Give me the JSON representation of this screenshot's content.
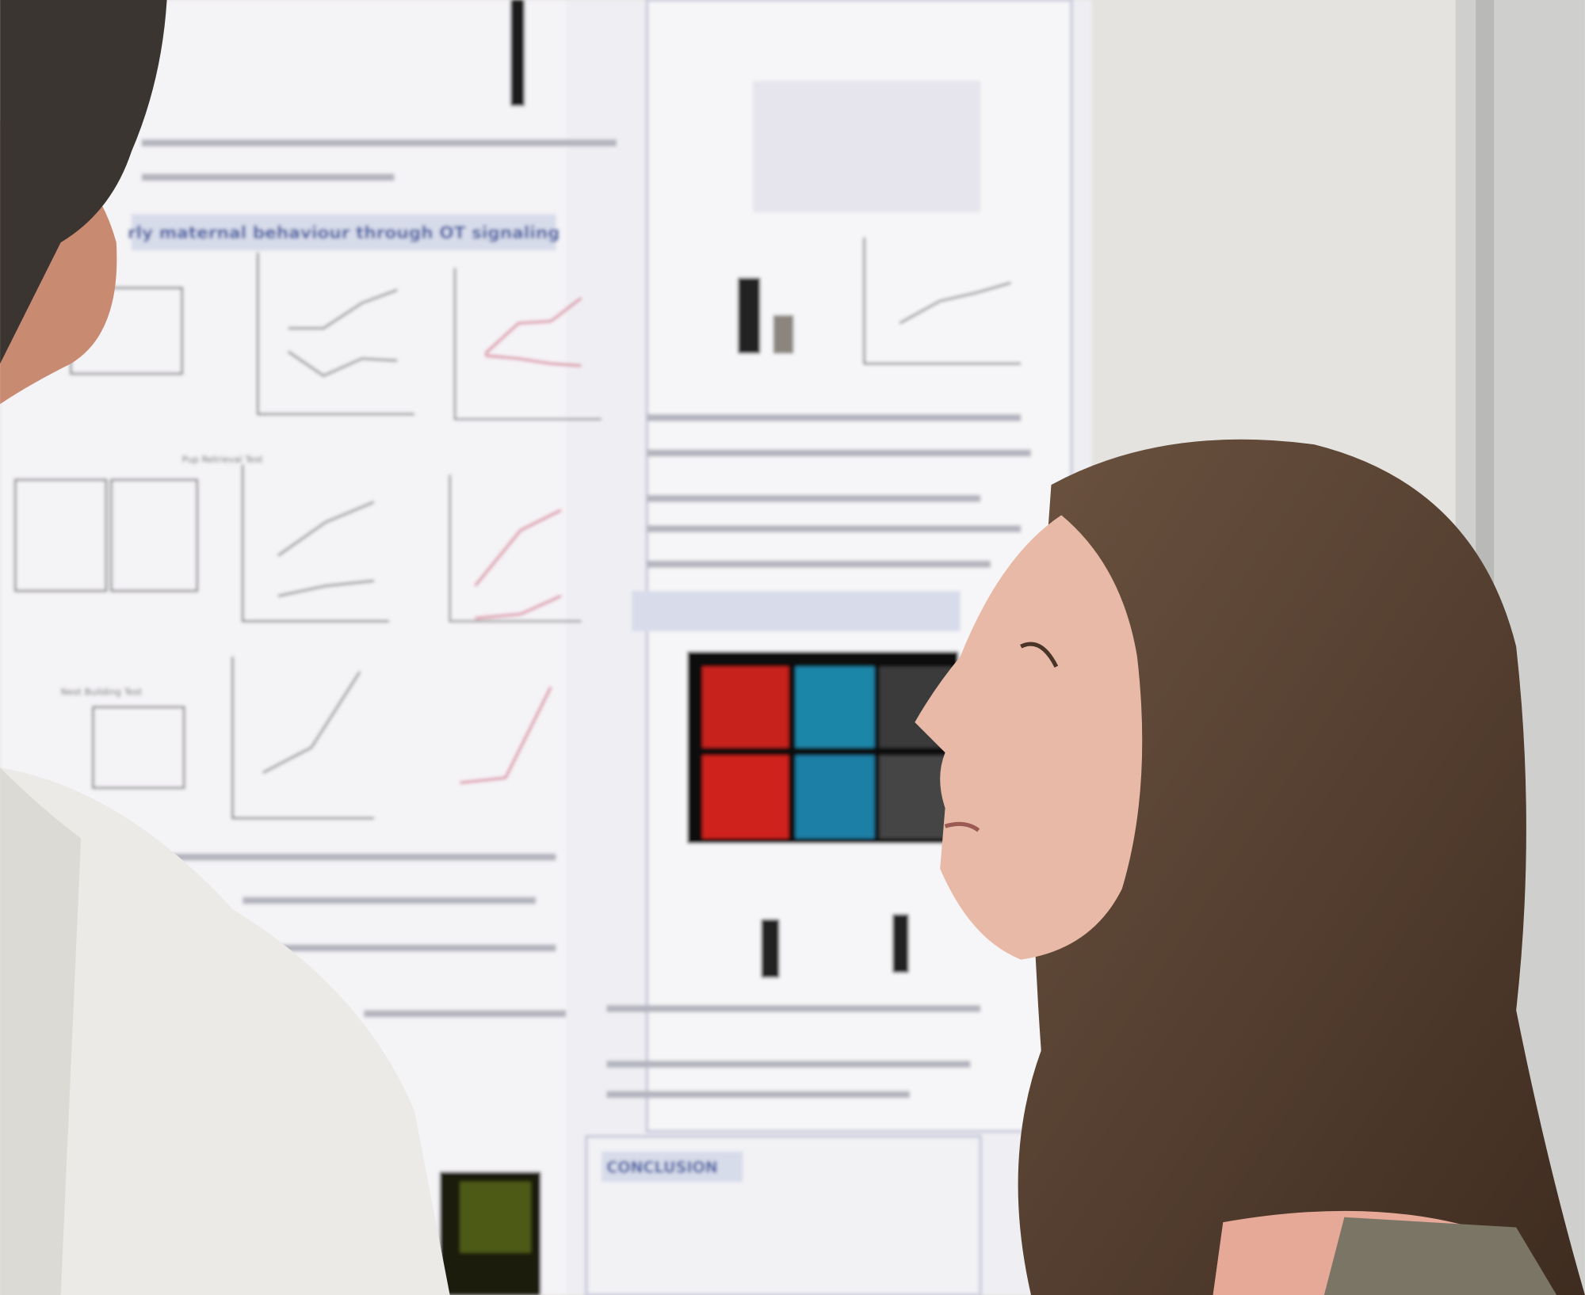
{
  "poster": {
    "section_heading": "rly maternal behaviour through OT signaling",
    "panel_labels": [
      "Pup Retrieval Test",
      "Nest Building Test"
    ],
    "conclusion_heading": "CONCLUSION"
  }
}
